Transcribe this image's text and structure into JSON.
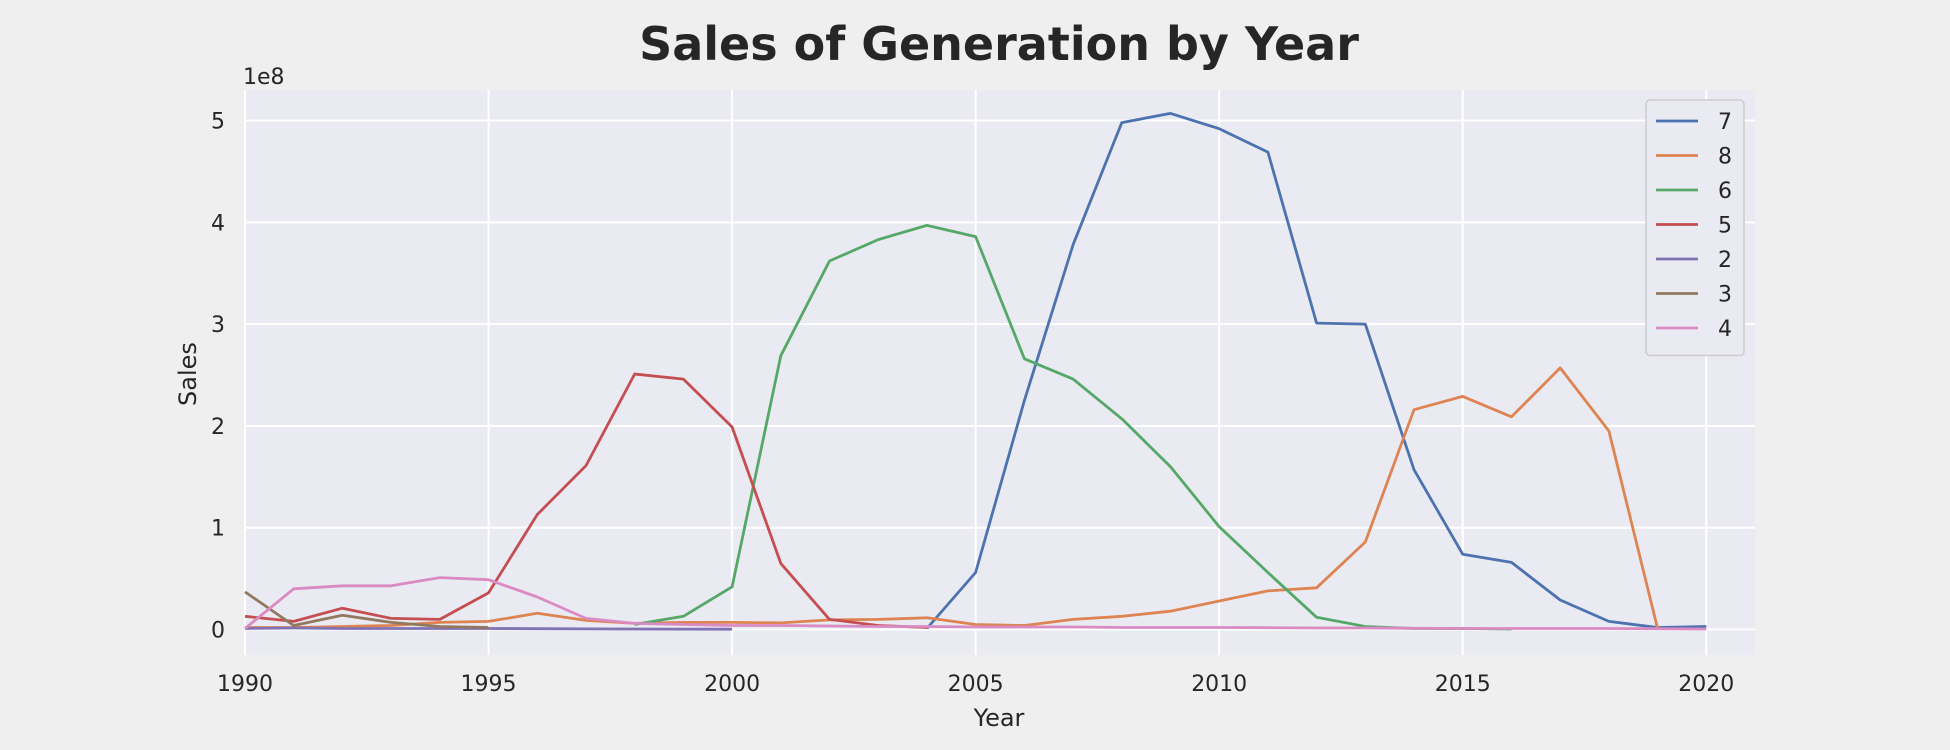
{
  "chart_data": {
    "type": "line",
    "title": "Sales of Generation by Year",
    "xlabel": "Year",
    "ylabel": "Sales",
    "y_multiplier_label": "1e8",
    "xlim": [
      1990,
      2021
    ],
    "ylim": [
      -25000000.0,
      530000000.0
    ],
    "x_ticks": [
      1990,
      1995,
      2000,
      2005,
      2010,
      2015,
      2020
    ],
    "y_ticks": [
      0,
      100000000,
      200000000,
      300000000,
      400000000,
      500000000
    ],
    "y_tick_labels": [
      "0",
      "1",
      "2",
      "3",
      "4",
      "5"
    ],
    "grid": true,
    "legend_position": "top-right",
    "series": [
      {
        "name": "7",
        "color": "#4c72b0",
        "x": [
          2004,
          2005,
          2006,
          2007,
          2008,
          2009,
          2010,
          2011,
          2012,
          2013,
          2014,
          2015,
          2016,
          2017,
          2018,
          2019,
          2020
        ],
        "y": [
          1000000,
          56000000,
          225000000,
          378000000,
          498000000,
          507000000,
          492000000,
          469000000,
          301000000,
          300000000,
          157000000,
          74000000,
          66000000,
          29000000,
          8000000,
          2000000,
          3000000
        ]
      },
      {
        "name": "8",
        "color": "#dd8452",
        "x": [
          1990,
          1991,
          1992,
          1993,
          1994,
          1995,
          1996,
          1997,
          1998,
          1999,
          2000,
          2001,
          2002,
          2003,
          2004,
          2005,
          2006,
          2007,
          2008,
          2009,
          2010,
          2011,
          2012,
          2013,
          2014,
          2015,
          2016,
          2017,
          2018,
          2019
        ],
        "y": [
          2000000,
          2000000,
          3000000,
          4000000,
          7000000,
          8000000,
          16000000,
          9000000,
          6000000,
          7000000,
          7000000,
          6500000,
          9500000,
          10000000,
          11500000,
          5000000,
          4000000,
          10000000,
          13000000,
          18000000,
          28000000,
          38000000,
          41000000,
          86000000,
          216000000,
          229000000,
          209000000,
          257000000,
          195000000,
          1000000
        ]
      },
      {
        "name": "6",
        "color": "#55a868",
        "x": [
          1998,
          1999,
          2000,
          2001,
          2002,
          2003,
          2004,
          2005,
          2006,
          2007,
          2008,
          2009,
          2010,
          2011,
          2012,
          2013,
          2014,
          2015,
          2016
        ],
        "y": [
          5000000,
          13000000,
          42000000,
          269000000,
          362000000,
          383000000,
          397000000,
          386000000,
          266000000,
          246000000,
          207000000,
          160000000,
          101000000,
          56000000,
          12000000,
          3000000,
          1000000,
          1000000,
          500000
        ]
      },
      {
        "name": "5",
        "color": "#c44e52",
        "x": [
          1990,
          1991,
          1992,
          1993,
          1994,
          1995,
          1996,
          1997,
          1998,
          1999,
          2000,
          2001,
          2002,
          2003,
          2004
        ],
        "y": [
          13000000,
          8000000,
          21000000,
          11000000,
          10000000,
          36000000,
          113000000,
          161000000,
          251000000,
          246000000,
          199000000,
          65000000,
          10000000,
          4000000,
          2000000
        ]
      },
      {
        "name": "2",
        "color": "#8172b3",
        "x": [
          1990,
          1991,
          1992,
          1993,
          1994,
          1995,
          1996,
          1997,
          1998,
          1999,
          2000
        ],
        "y": [
          1000000,
          1500000,
          1000000,
          1000000,
          1000000,
          1000000,
          800000,
          600000,
          500000,
          400000,
          300000
        ]
      },
      {
        "name": "3",
        "color": "#937860",
        "x": [
          1990,
          1991,
          1992,
          1993,
          1994,
          1995
        ],
        "y": [
          37000000,
          4000000,
          14000000,
          7000000,
          3000000,
          2000000
        ]
      },
      {
        "name": "4",
        "color": "#da8bc3",
        "x": [
          1990,
          1991,
          1992,
          1993,
          1994,
          1995,
          1996,
          1997,
          1998,
          1999,
          2000,
          2001,
          2002,
          2003,
          2004,
          2005,
          2006,
          2007,
          2008,
          2009,
          2010,
          2011,
          2012,
          2013,
          2014,
          2015,
          2016,
          2017,
          2018,
          2019,
          2020
        ],
        "y": [
          1000000,
          40000000,
          43000000,
          43000000,
          51000000,
          49000000,
          32000000,
          11000000,
          6000000,
          5000000,
          4000000,
          4000000,
          3500000,
          3000000,
          3000000,
          2500000,
          2500000,
          2500000,
          2000000,
          2000000,
          2000000,
          1800000,
          1500000,
          1500000,
          1200000,
          1000000,
          1000000,
          1000000,
          1000000,
          800000,
          500000
        ]
      }
    ]
  }
}
